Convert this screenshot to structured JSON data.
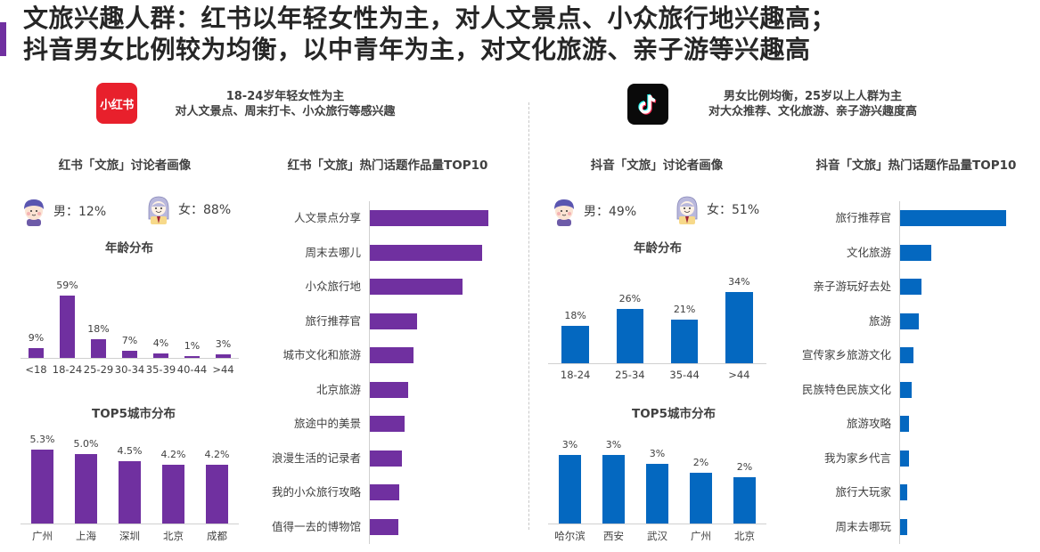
{
  "headline": {
    "line1": "文旅兴趣人群：红书以年轻女性为主，对人文景点、小众旅行地兴趣高；",
    "line2": "抖音男女比例较为均衡，以中青年为主，对文化旅游、亲子游等兴趣高",
    "accent_color": "#7030a0"
  },
  "xhs": {
    "logo_text": "小红书",
    "logo_color": "#e8202c",
    "summary_line1": "18-24岁年轻女性为主",
    "summary_line2": "对人文景点、周末打卡、小众旅行等感兴趣",
    "portrait_title": "红书「文旅」讨论者画像",
    "male_label": "男：12%",
    "female_label": "女：88%",
    "age_title": "年龄分布",
    "city_title": "TOP5城市分布",
    "topics_title": "红书「文旅」热门话题作品量TOP10",
    "bar_color": "#7030a0"
  },
  "douyin": {
    "summary_line1": "男女比例均衡，25岁以上人群为主",
    "summary_line2": "对大众推荐、文化旅游、亲子游兴趣度高",
    "portrait_title": "抖音「文旅」讨论者画像",
    "male_label": "男：49%",
    "female_label": "女：51%",
    "age_title": "年龄分布",
    "city_title": "TOP5城市分布",
    "topics_title": "抖音「文旅」热门话题作品量TOP10",
    "bar_color": "#0468c0"
  },
  "chart_data": [
    {
      "id": "xhs_age",
      "type": "bar",
      "title": "年龄分布",
      "categories": [
        "<18",
        "18-24",
        "25-29",
        "30-34",
        "35-39",
        "40-44",
        ">44"
      ],
      "values": [
        9,
        59,
        18,
        7,
        4,
        1,
        3
      ],
      "labels": [
        "9%",
        "59%",
        "18%",
        "7%",
        "4%",
        "1%",
        "3%"
      ],
      "unit": "%",
      "color": "#7030a0"
    },
    {
      "id": "xhs_city",
      "type": "bar",
      "title": "TOP5城市分布",
      "categories": [
        "广州",
        "上海",
        "深圳",
        "北京",
        "成都"
      ],
      "values": [
        5.3,
        5.0,
        4.5,
        4.2,
        4.2
      ],
      "labels": [
        "5.3%",
        "5.0%",
        "4.5%",
        "4.2%",
        "4.2%"
      ],
      "unit": "%",
      "color": "#7030a0"
    },
    {
      "id": "xhs_topics",
      "type": "bar",
      "orientation": "horizontal",
      "title": "红书「文旅」热门话题作品量TOP10",
      "categories": [
        "人文景点分享",
        "周末去哪儿",
        "小众旅行地",
        "旅行推荐官",
        "城市文化和旅游",
        "北京旅游",
        "旅途中的美景",
        "浪漫生活的记录者",
        "我的小众旅行攻略",
        "值得一去的博物馆"
      ],
      "values": [
        100,
        95,
        78,
        40,
        37,
        32,
        29,
        27,
        25,
        24
      ],
      "note": "relative bar lengths (no axis values shown)",
      "color": "#7030a0"
    },
    {
      "id": "douyin_age",
      "type": "bar",
      "title": "年龄分布",
      "categories": [
        "18-24",
        "25-34",
        "35-44",
        ">44"
      ],
      "values": [
        18,
        26,
        21,
        34
      ],
      "labels": [
        "18%",
        "26%",
        "21%",
        "34%"
      ],
      "unit": "%",
      "color": "#0468c0"
    },
    {
      "id": "douyin_city",
      "type": "bar",
      "title": "TOP5城市分布",
      "categories": [
        "哈尔滨",
        "西安",
        "武汉",
        "广州",
        "北京"
      ],
      "values": [
        3.1,
        3.1,
        2.7,
        2.3,
        2.1
      ],
      "labels": [
        "3%",
        "3%",
        "3%",
        "2%",
        "2%"
      ],
      "unit": "%",
      "color": "#0468c0"
    },
    {
      "id": "douyin_topics",
      "type": "bar",
      "orientation": "horizontal",
      "title": "抖音「文旅」热门话题作品量TOP10",
      "categories": [
        "旅行推荐官",
        "文化旅游",
        "亲子游玩好去处",
        "旅游",
        "宣传家乡旅游文化",
        "民族特色民族文化",
        "旅游攻略",
        "我为家乡代言",
        "旅行大玩家",
        "周末去哪玩"
      ],
      "values": [
        100,
        29,
        20,
        18,
        13,
        11,
        8,
        8,
        7,
        7
      ],
      "note": "relative bar lengths (no axis values shown)",
      "color": "#0468c0"
    }
  ]
}
